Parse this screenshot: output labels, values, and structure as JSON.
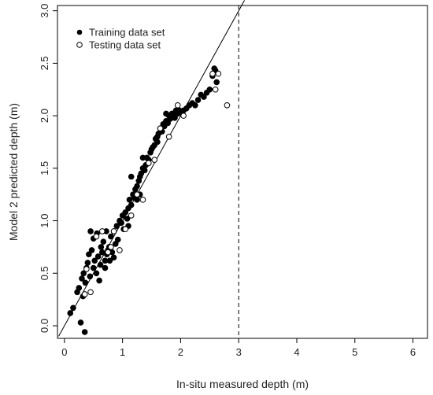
{
  "chart_data": {
    "type": "scatter",
    "title": "",
    "xlabel": "In-situ measured depth (m)",
    "ylabel": "Model 2 predicted depth (m)",
    "xlim": [
      -0.12,
      6.25
    ],
    "ylim": [
      -0.12,
      3.05
    ],
    "xticks": [
      "0",
      "1",
      "2",
      "3",
      "4",
      "5",
      "6"
    ],
    "yticks": [
      "0.0",
      "0.5",
      "1.0",
      "1.5",
      "2.0",
      "2.5",
      "3.0"
    ],
    "grid": false,
    "legend_position": "top-left",
    "reference_line": {
      "kind": "identity",
      "from": [
        -0.1,
        -0.1
      ],
      "to": [
        3.1,
        3.1
      ]
    },
    "vertical_line": {
      "x": 3.0,
      "style": "dashed"
    },
    "series": [
      {
        "name": "Training data set",
        "marker": "filled-circle",
        "color": "#000000",
        "points": [
          [
            0.1,
            0.12
          ],
          [
            0.15,
            0.17
          ],
          [
            0.22,
            0.32
          ],
          [
            0.25,
            0.36
          ],
          [
            0.28,
            0.03
          ],
          [
            0.3,
            0.45
          ],
          [
            0.32,
            0.28
          ],
          [
            0.33,
            0.5
          ],
          [
            0.35,
            -0.06
          ],
          [
            0.36,
            0.41
          ],
          [
            0.38,
            0.55
          ],
          [
            0.4,
            0.6
          ],
          [
            0.42,
            0.68
          ],
          [
            0.44,
            0.47
          ],
          [
            0.45,
            0.9
          ],
          [
            0.47,
            0.72
          ],
          [
            0.5,
            0.55
          ],
          [
            0.52,
            0.62
          ],
          [
            0.55,
            0.5
          ],
          [
            0.56,
            0.88
          ],
          [
            0.58,
            0.66
          ],
          [
            0.6,
            0.43
          ],
          [
            0.62,
            0.58
          ],
          [
            0.63,
            0.75
          ],
          [
            0.65,
            0.7
          ],
          [
            0.67,
            0.8
          ],
          [
            0.7,
            0.62
          ],
          [
            0.72,
            0.9
          ],
          [
            0.73,
            0.68
          ],
          [
            0.75,
            0.72
          ],
          [
            0.77,
            0.75
          ],
          [
            0.78,
            0.62
          ],
          [
            0.8,
            0.85
          ],
          [
            0.82,
            0.7
          ],
          [
            0.85,
            0.9
          ],
          [
            0.88,
            0.78
          ],
          [
            0.9,
            0.95
          ],
          [
            0.92,
            0.82
          ],
          [
            0.95,
            1.0
          ],
          [
            0.98,
            0.98
          ],
          [
            1.0,
            1.05
          ],
          [
            1.02,
            0.92
          ],
          [
            1.05,
            1.08
          ],
          [
            1.08,
            1.02
          ],
          [
            1.1,
            1.12
          ],
          [
            1.12,
            1.2
          ],
          [
            1.15,
            1.15
          ],
          [
            1.18,
            1.25
          ],
          [
            1.2,
            1.22
          ],
          [
            1.22,
            1.3
          ],
          [
            1.25,
            1.33
          ],
          [
            1.28,
            1.38
          ],
          [
            1.3,
            1.42
          ],
          [
            1.32,
            1.45
          ],
          [
            1.35,
            1.5
          ],
          [
            1.38,
            1.48
          ],
          [
            1.4,
            1.53
          ],
          [
            1.42,
            1.6
          ],
          [
            1.45,
            1.58
          ],
          [
            1.48,
            1.65
          ],
          [
            1.5,
            1.68
          ],
          [
            1.52,
            1.7
          ],
          [
            1.55,
            1.72
          ],
          [
            1.57,
            1.78
          ],
          [
            1.6,
            1.8
          ],
          [
            1.62,
            1.83
          ],
          [
            1.65,
            1.88
          ],
          [
            1.68,
            1.85
          ],
          [
            1.7,
            1.92
          ],
          [
            1.72,
            1.9
          ],
          [
            1.75,
            1.95
          ],
          [
            1.78,
            1.93
          ],
          [
            1.8,
            2.0
          ],
          [
            1.82,
            1.97
          ],
          [
            1.85,
            2.02
          ],
          [
            1.88,
            2.0
          ],
          [
            1.9,
            1.98
          ],
          [
            1.92,
            2.05
          ],
          [
            1.95,
            2.02
          ],
          [
            1.98,
            2.05
          ],
          [
            2.0,
            2.03
          ],
          [
            2.05,
            2.05
          ],
          [
            2.1,
            2.07
          ],
          [
            2.15,
            2.1
          ],
          [
            2.2,
            2.12
          ],
          [
            2.25,
            2.1
          ],
          [
            2.3,
            2.15
          ],
          [
            2.35,
            2.2
          ],
          [
            2.4,
            2.18
          ],
          [
            2.45,
            2.22
          ],
          [
            2.5,
            2.25
          ],
          [
            2.55,
            2.38
          ],
          [
            2.58,
            2.45
          ],
          [
            2.6,
            2.43
          ],
          [
            2.62,
            2.32
          ],
          [
            1.15,
            1.42
          ],
          [
            1.25,
            1.2
          ],
          [
            1.35,
            1.6
          ],
          [
            1.6,
            1.75
          ],
          [
            1.75,
            2.02
          ],
          [
            0.85,
            0.65
          ],
          [
            0.7,
            0.55
          ],
          [
            0.5,
            0.83
          ],
          [
            1.1,
            0.95
          ],
          [
            1.3,
            1.25
          ]
        ]
      },
      {
        "name": "Testing data set",
        "marker": "open-circle",
        "color": "#000000",
        "points": [
          [
            0.35,
            0.3
          ],
          [
            0.38,
            0.54
          ],
          [
            0.45,
            0.32
          ],
          [
            0.55,
            0.85
          ],
          [
            0.65,
            0.9
          ],
          [
            0.75,
            0.7
          ],
          [
            0.8,
            0.75
          ],
          [
            0.85,
            0.9
          ],
          [
            0.95,
            0.72
          ],
          [
            1.05,
            0.92
          ],
          [
            1.15,
            1.05
          ],
          [
            1.25,
            1.25
          ],
          [
            1.35,
            1.2
          ],
          [
            1.45,
            1.55
          ],
          [
            1.55,
            1.58
          ],
          [
            1.65,
            1.88
          ],
          [
            1.8,
            1.8
          ],
          [
            1.95,
            2.1
          ],
          [
            2.05,
            2.0
          ],
          [
            2.55,
            2.4
          ],
          [
            2.6,
            2.25
          ],
          [
            2.65,
            2.4
          ],
          [
            2.8,
            2.1
          ]
        ]
      }
    ]
  }
}
